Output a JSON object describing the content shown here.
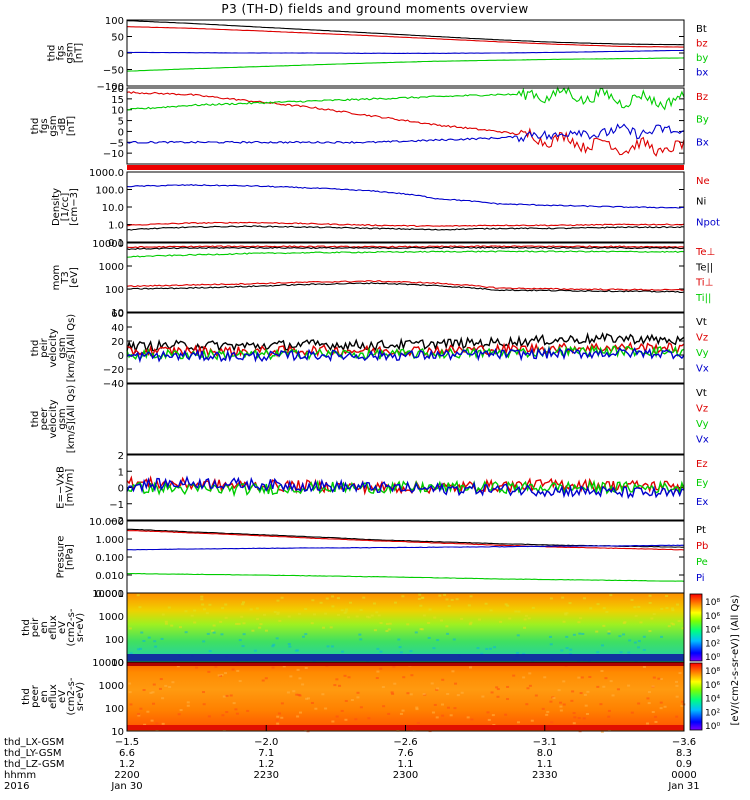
{
  "title": "P3 (TH-D) fields and ground moments overview",
  "colors": {
    "black": "#000000",
    "red": "#dd0000",
    "green": "#00cc00",
    "blue": "#0000cc"
  },
  "chart_data": [
    {
      "id": "fgs-gsm-nT",
      "type": "line",
      "ylabel": [
        "thd",
        "fgs",
        "gsm",
        "[nT]"
      ],
      "yticks": [
        "100",
        "50",
        "0",
        "−50",
        "−100"
      ],
      "ylim": [
        -100,
        100
      ],
      "scale": "linear",
      "series": [
        {
          "name": "Bt",
          "color": "#000000",
          "values": [
            98,
            90,
            80,
            70,
            60,
            50,
            40,
            32,
            27,
            25
          ]
        },
        {
          "name": "bz",
          "color": "#dd0000",
          "values": [
            80,
            75,
            68,
            60,
            52,
            43,
            34,
            26,
            20,
            18
          ]
        },
        {
          "name": "by",
          "color": "#00cc00",
          "values": [
            -55,
            -48,
            -42,
            -36,
            -30,
            -25,
            -22,
            -19,
            -17,
            -15
          ]
        },
        {
          "name": "bx",
          "color": "#0000cc",
          "values": [
            2,
            1,
            0,
            0,
            -1,
            -1,
            0,
            2,
            5,
            8
          ]
        }
      ],
      "legend": [
        "Bt",
        "bz",
        "by",
        "bx"
      ]
    },
    {
      "id": "fgs-gsm-dB",
      "type": "line",
      "ylabel": [
        "thd",
        "fgs",
        "gsm",
        "-dB",
        "[nT]"
      ],
      "yticks": [
        "20",
        "15",
        "10",
        "5",
        "0",
        "−5",
        "−10"
      ],
      "ylim": [
        -15,
        20
      ],
      "scale": "linear",
      "series": [
        {
          "name": "Bz",
          "color": "#dd0000",
          "values": [
            18,
            17,
            14,
            11,
            7,
            3,
            0,
            -4,
            -7,
            -8
          ]
        },
        {
          "name": "By",
          "color": "#00cc00",
          "values": [
            10,
            12,
            13,
            14,
            15,
            16,
            17,
            17,
            15,
            14
          ]
        },
        {
          "name": "Bx",
          "color": "#0000cc",
          "values": [
            -5,
            -5,
            -5,
            -5,
            -5,
            -4,
            -3,
            -1,
            0,
            0
          ]
        }
      ],
      "legend": [
        "Bz",
        "By",
        "Bx"
      ]
    },
    {
      "id": "density",
      "type": "line",
      "ylabel": [
        "Density",
        "[1/cc]",
        "[cm−3]"
      ],
      "yticks": [
        "1000.0",
        "100.0",
        "10.0",
        "1.0",
        "0.1"
      ],
      "ylim": [
        0.1,
        1000
      ],
      "scale": "log",
      "series": [
        {
          "name": "Ne",
          "color": "#dd0000",
          "values": [
            0.9,
            1.2,
            1.3,
            1.1,
            0.9,
            0.8,
            0.9,
            0.9,
            1.0,
            1.0
          ]
        },
        {
          "name": "Ni",
          "color": "#000000",
          "values": [
            0.5,
            0.7,
            0.8,
            0.7,
            0.6,
            0.5,
            0.6,
            0.6,
            0.7,
            0.7
          ]
        },
        {
          "name": "Npot",
          "color": "#0000cc",
          "values": [
            150,
            180,
            160,
            120,
            80,
            30,
            15,
            12,
            10,
            9
          ]
        }
      ],
      "legend": [
        "Ne",
        "Ni",
        "Npot"
      ]
    },
    {
      "id": "temperature",
      "type": "line",
      "ylabel": [
        "mom",
        "T3",
        "[eV]"
      ],
      "yticks": [
        "10000",
        "1000",
        "100",
        "10"
      ],
      "ylim": [
        10,
        10000
      ],
      "scale": "log",
      "series": [
        {
          "name": "Te⊥",
          "color": "#dd0000",
          "values": [
            6500,
            7000,
            7200,
            7000,
            6800,
            7000,
            7200,
            7100,
            7000,
            6800
          ]
        },
        {
          "name": "Te||",
          "color": "#000000",
          "values": [
            5500,
            6000,
            6200,
            6100,
            6000,
            6200,
            6300,
            6200,
            6100,
            6000
          ]
        },
        {
          "name": "Ti⊥",
          "color": "#dd0000",
          "values": [
            130,
            150,
            170,
            200,
            220,
            180,
            110,
            100,
            95,
            90
          ]
        },
        {
          "name": "Ti||",
          "color": "#00cc00",
          "values": [
            2500,
            3000,
            3500,
            3800,
            4000,
            4200,
            4300,
            4300,
            4200,
            4100
          ]
        },
        {
          "name": "Ti",
          "color": "#000000",
          "values": [
            100,
            110,
            130,
            160,
            180,
            140,
            90,
            85,
            80,
            75
          ]
        }
      ],
      "legend": [
        "Te⊥",
        "Te||",
        "Ti⊥",
        "Ti||"
      ]
    },
    {
      "id": "peir-velocity",
      "type": "line",
      "ylabel": [
        "thd",
        "peir",
        "velocity",
        "gsm",
        "[km/s](All Qs)"
      ],
      "yticks": [
        "60",
        "40",
        "20",
        "0",
        "−20",
        "−40"
      ],
      "ylim": [
        -40,
        60
      ],
      "scale": "linear",
      "series": [
        {
          "name": "Vt",
          "color": "#000000",
          "values": [
            12,
            14,
            13,
            15,
            14,
            16,
            18,
            22,
            24,
            20
          ]
        },
        {
          "name": "Vz",
          "color": "#dd0000",
          "values": [
            5,
            6,
            5,
            7,
            6,
            7,
            8,
            10,
            11,
            10
          ]
        },
        {
          "name": "Vy",
          "color": "#00cc00",
          "values": [
            0,
            1,
            0,
            2,
            1,
            2,
            3,
            5,
            6,
            5
          ]
        },
        {
          "name": "Vx",
          "color": "#0000cc",
          "values": [
            -2,
            -1,
            -2,
            0,
            -1,
            0,
            1,
            2,
            3,
            2
          ]
        }
      ],
      "legend": [
        "Vt",
        "Vz",
        "Vy",
        "Vx"
      ]
    },
    {
      "id": "peer-velocity",
      "type": "line",
      "ylabel": [
        "thd",
        "peer",
        "velocity",
        "gsm",
        "[km/s](All Qs)"
      ],
      "yticks": [],
      "ylim": [
        0,
        1
      ],
      "scale": "linear",
      "series": [],
      "legend": [
        "Vt",
        "Vz",
        "Vy",
        "Vx"
      ]
    },
    {
      "id": "efield",
      "type": "line",
      "ylabel": [
        "E=−VxB",
        "[mV/m]"
      ],
      "yticks": [
        "2",
        "1",
        "0",
        "−1",
        "−2"
      ],
      "ylim": [
        -2,
        2
      ],
      "scale": "linear",
      "series": [
        {
          "name": "Ez",
          "color": "#dd0000",
          "values": [
            0.3,
            0.2,
            0.1,
            0.1,
            0,
            0,
            0.1,
            0.2,
            0.1,
            0.1
          ]
        },
        {
          "name": "Ey",
          "color": "#00cc00",
          "values": [
            0,
            -0.1,
            -0.1,
            0,
            0,
            0,
            0,
            0,
            0,
            0
          ]
        },
        {
          "name": "Ex",
          "color": "#0000cc",
          "values": [
            0.1,
            0.3,
            0.2,
            0.1,
            0,
            -0.1,
            -0.1,
            -0.2,
            -0.3,
            -0.4
          ]
        }
      ],
      "legend": [
        "Ez",
        "Ey",
        "Ex"
      ]
    },
    {
      "id": "pressure",
      "type": "line",
      "ylabel": [
        "Pressure",
        "[nPa]"
      ],
      "yticks": [
        "10.000",
        "1.000",
        "0.100",
        "0.010",
        "0.001"
      ],
      "ylim": [
        0.001,
        10
      ],
      "scale": "log",
      "series": [
        {
          "name": "Pt",
          "color": "#000000",
          "values": [
            3.5,
            2.5,
            1.8,
            1.3,
            0.9,
            0.7,
            0.55,
            0.45,
            0.4,
            0.35
          ]
        },
        {
          "name": "Pb",
          "color": "#dd0000",
          "values": [
            3.0,
            2.2,
            1.6,
            1.1,
            0.8,
            0.6,
            0.45,
            0.35,
            0.3,
            0.25
          ]
        },
        {
          "name": "Pe",
          "color": "#00cc00",
          "values": [
            0.012,
            0.011,
            0.01,
            0.009,
            0.008,
            0.007,
            0.006,
            0.0055,
            0.005,
            0.0045
          ]
        },
        {
          "name": "Pi",
          "color": "#0000cc",
          "values": [
            0.25,
            0.28,
            0.3,
            0.32,
            0.33,
            0.35,
            0.37,
            0.4,
            0.42,
            0.45
          ]
        }
      ],
      "legend": [
        "Pt",
        "Pb",
        "Pe",
        "Pi"
      ]
    },
    {
      "id": "peir-spectrogram",
      "type": "heatmap",
      "ylabel": [
        "thd",
        "peir",
        "en",
        "eflux",
        "eV",
        "(cm2-s-",
        "sr-eV)"
      ],
      "yticks": [
        "10000",
        "1000",
        "100",
        "10"
      ],
      "ylim": [
        10,
        10000
      ],
      "scale": "log",
      "description_rows_low_to_high": [
        "cyan-green",
        "green",
        "green-yellow",
        "yellow-orange",
        "orange"
      ]
    },
    {
      "id": "peer-spectrogram",
      "type": "heatmap",
      "ylabel": [
        "thd",
        "peer",
        "en",
        "eflux",
        "eV",
        "(cm2-s-",
        "sr-eV)"
      ],
      "yticks": [
        "10000",
        "1000",
        "100",
        "10"
      ],
      "ylim": [
        10,
        10000
      ],
      "scale": "log",
      "description_rows_low_to_high": [
        "red-orange",
        "orange",
        "orange",
        "orange",
        "orange-red"
      ]
    }
  ],
  "colorbar": {
    "label": "[eV/(cm2-s-sr-eV)] (All Qs)",
    "upper_ticks": [
      "10⁸",
      "10⁶",
      "10⁴",
      "10²",
      "10⁰"
    ],
    "lower_ticks": [
      "10⁸",
      "10⁶",
      "10⁴",
      "10²",
      "10⁰"
    ]
  },
  "xaxis": {
    "rows": [
      {
        "label": "thd_LX-GSM",
        "values": [
          "−1.5",
          "−2.0",
          "−2.6",
          "−3.1",
          "−3.6"
        ]
      },
      {
        "label": "thd_LY-GSM",
        "values": [
          "6.6",
          "7.1",
          "7.6",
          "8.0",
          "8.3"
        ]
      },
      {
        "label": "thd_LZ-GSM",
        "values": [
          "1.2",
          "1.2",
          "1.1",
          "1.1",
          "0.9"
        ]
      },
      {
        "label": "hhmm",
        "values": [
          "2200",
          "2230",
          "2300",
          "2330",
          "0000"
        ]
      },
      {
        "label": "2016",
        "values": [
          "Jan 30",
          "",
          "",
          "",
          "Jan 31"
        ]
      }
    ]
  }
}
